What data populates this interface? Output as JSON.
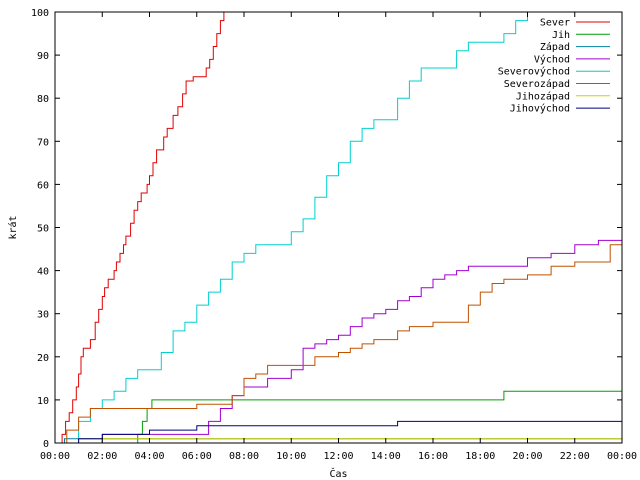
{
  "chart_data": {
    "type": "line",
    "title": "",
    "xlabel": "Čas",
    "ylabel": "krát",
    "xlim": [
      0,
      24
    ],
    "ylim": [
      0,
      100
    ],
    "x_ticks": [
      "00:00",
      "02:00",
      "04:00",
      "06:00",
      "08:00",
      "10:00",
      "12:00",
      "14:00",
      "16:00",
      "18:00",
      "20:00",
      "22:00",
      "00:00"
    ],
    "y_ticks": [
      "0",
      "10",
      "20",
      "30",
      "40",
      "50",
      "60",
      "70",
      "80",
      "90",
      "100"
    ],
    "grid": false,
    "legend_position": "top-right",
    "series": [
      {
        "name": "Sever",
        "color": "#e00000",
        "x": [
          0.0,
          0.3,
          0.45,
          0.6,
          0.75,
          0.9,
          1.0,
          1.1,
          1.2,
          1.35,
          1.5,
          1.7,
          1.85,
          2.0,
          2.1,
          2.25,
          2.4,
          2.5,
          2.6,
          2.75,
          2.9,
          3.0,
          3.2,
          3.35,
          3.5,
          3.65,
          3.8,
          3.9,
          4.0,
          4.15,
          4.3,
          4.45,
          4.6,
          4.75,
          4.9,
          5.0,
          5.2,
          5.4,
          5.55,
          5.7,
          5.85,
          6.0,
          6.2,
          6.4,
          6.55,
          6.7,
          6.85,
          7.0,
          7.15,
          7.3,
          7.45,
          7.6,
          7.8,
          8.0,
          8.2,
          8.35,
          8.5,
          8.6,
          8.7
        ],
        "y": [
          0,
          2,
          5,
          7,
          10,
          13,
          16,
          20,
          22,
          22,
          24,
          28,
          31,
          34,
          36,
          38,
          38,
          40,
          42,
          44,
          46,
          48,
          51,
          54,
          56,
          58,
          58,
          60,
          62,
          65,
          68,
          68,
          71,
          73,
          73,
          76,
          78,
          81,
          84,
          84,
          85,
          85,
          85,
          87,
          89,
          92,
          95,
          98,
          100,
          100,
          100,
          100,
          100,
          100,
          100,
          100,
          100,
          100,
          100
        ]
      },
      {
        "name": "Jih",
        "color": "#00a000",
        "x": [
          0.0,
          3.0,
          3.5,
          3.7,
          3.9,
          4.1,
          4.5,
          10.0,
          14.0,
          18.0,
          18.8,
          19.0,
          20.0,
          22.0,
          24.0
        ],
        "y": [
          0,
          0,
          2,
          5,
          8,
          10,
          10,
          10,
          10,
          10,
          10,
          12,
          12,
          12,
          12
        ]
      },
      {
        "name": "Západ",
        "color": "#0080a0",
        "x": [
          0.0,
          0.4,
          0.8,
          1.2,
          4.0,
          8.0,
          12.0,
          16.0,
          20.0,
          24.0
        ],
        "y": [
          0,
          1,
          1,
          1,
          1,
          1,
          1,
          1,
          1,
          1
        ]
      },
      {
        "name": "Východ",
        "color": "#a000d0",
        "x": [
          0.0,
          1.5,
          2.0,
          4.0,
          6.0,
          6.5,
          7.0,
          7.5,
          8.0,
          9.0,
          10.0,
          10.5,
          11.0,
          11.5,
          12.0,
          12.5,
          13.0,
          13.5,
          14.0,
          14.5,
          15.0,
          15.5,
          16.0,
          16.5,
          17.0,
          17.5,
          18.0,
          19.0,
          20.0,
          21.0,
          22.0,
          23.0,
          24.0
        ],
        "y": [
          0,
          0,
          2,
          2,
          2,
          5,
          8,
          11,
          13,
          15,
          17,
          22,
          23,
          24,
          25,
          27,
          29,
          30,
          31,
          33,
          34,
          36,
          38,
          39,
          40,
          41,
          41,
          41,
          43,
          44,
          46,
          47,
          48
        ]
      },
      {
        "name": "Severovýchod",
        "color": "#00d0d0",
        "x": [
          0.0,
          1.0,
          1.5,
          2.0,
          2.5,
          3.0,
          3.5,
          4.0,
          4.5,
          5.0,
          5.5,
          6.0,
          6.5,
          7.0,
          7.5,
          8.0,
          8.5,
          9.0,
          9.5,
          10.0,
          10.5,
          11.0,
          11.5,
          12.0,
          12.5,
          13.0,
          13.5,
          14.0,
          14.5,
          15.0,
          15.5,
          16.0,
          16.5,
          17.0,
          17.5,
          18.0,
          18.5,
          19.0,
          19.5,
          20.0,
          20.5,
          24.0
        ],
        "y": [
          0,
          5,
          8,
          10,
          12,
          15,
          17,
          17,
          21,
          26,
          28,
          32,
          35,
          38,
          42,
          44,
          46,
          46,
          46,
          49,
          52,
          57,
          62,
          65,
          70,
          73,
          75,
          75,
          80,
          84,
          87,
          87,
          87,
          91,
          93,
          93,
          93,
          95,
          98,
          100,
          100,
          100
        ]
      },
      {
        "name": "Severozápad",
        "color": "#c05000",
        "x": [
          0.0,
          0.5,
          1.0,
          1.5,
          2.0,
          3.0,
          4.0,
          5.0,
          6.0,
          7.0,
          7.5,
          8.0,
          8.5,
          9.0,
          10.0,
          11.0,
          12.0,
          12.5,
          13.0,
          13.5,
          14.0,
          14.5,
          15.0,
          16.0,
          16.5,
          17.0,
          17.5,
          18.0,
          18.5,
          19.0,
          20.0,
          21.0,
          22.0,
          23.0,
          23.5,
          24.0
        ],
        "y": [
          0,
          3,
          6,
          8,
          8,
          8,
          8,
          8,
          9,
          9,
          11,
          15,
          16,
          18,
          18,
          20,
          21,
          22,
          23,
          24,
          24,
          26,
          27,
          28,
          28,
          28,
          32,
          35,
          37,
          38,
          39,
          41,
          42,
          42,
          46,
          46
        ]
      },
      {
        "name": "Jihozápad",
        "color": "#d0d000",
        "x": [
          0.0,
          0.5,
          1.0,
          24.0
        ],
        "y": [
          0,
          0,
          1,
          1
        ]
      },
      {
        "name": "Jihovýchod",
        "color": "#000080",
        "x": [
          0.0,
          1.0,
          2.0,
          4.0,
          5.0,
          6.0,
          8.0,
          10.0,
          12.0,
          14.0,
          14.5,
          16.0,
          18.0,
          20.0,
          22.0,
          24.0
        ],
        "y": [
          0,
          1,
          2,
          3,
          3,
          4,
          4,
          4,
          4,
          4,
          5,
          5,
          5,
          5,
          5,
          5
        ]
      }
    ]
  }
}
